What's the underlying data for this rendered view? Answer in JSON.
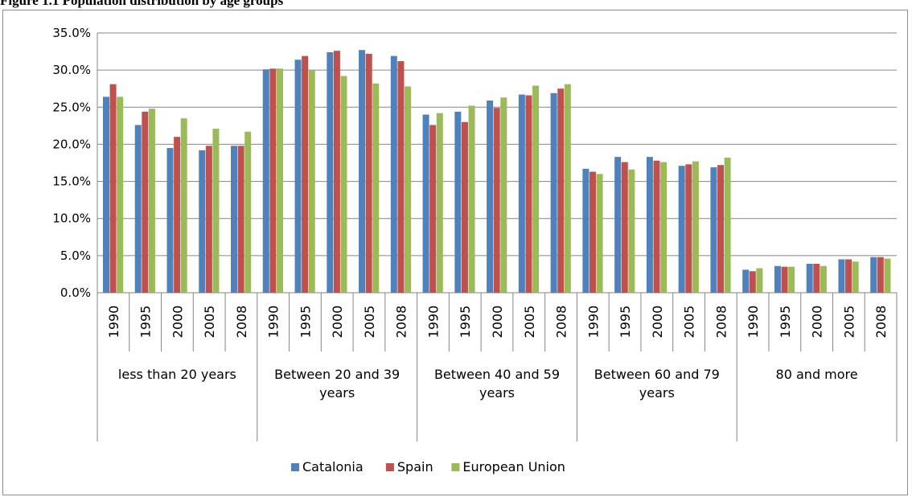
{
  "caption": "Figure 1.1 Population distribution by age groups",
  "colors": {
    "Catalonia": "#4f81bd",
    "Spain": "#c0504d",
    "European Union": "#9bbb59"
  },
  "chart_data": {
    "type": "bar",
    "title": "",
    "ylim": [
      0,
      35
    ],
    "y_ticks": [
      "0.0%",
      "5.0%",
      "10.0%",
      "15.0%",
      "20.0%",
      "25.0%",
      "30.0%",
      "35.0%"
    ],
    "grid": true,
    "legend_position": "bottom",
    "groups": [
      {
        "label": "less than 20 years",
        "years": [
          "1990",
          "1995",
          "2000",
          "2005",
          "2008"
        ]
      },
      {
        "label": "Between 20 and 39 years",
        "years": [
          "1990",
          "1995",
          "2000",
          "2005",
          "2008"
        ]
      },
      {
        "label": "Between 40 and 59 years",
        "years": [
          "1990",
          "1995",
          "2000",
          "2005",
          "2008"
        ]
      },
      {
        "label": "Between 60 and 79 years",
        "years": [
          "1990",
          "1995",
          "2000",
          "2005",
          "2008"
        ]
      },
      {
        "label": "80 and more",
        "years": [
          "1990",
          "1995",
          "2000",
          "2005",
          "2008"
        ]
      }
    ],
    "series": [
      {
        "name": "Catalonia",
        "values": [
          26.4,
          22.6,
          19.5,
          19.2,
          19.8,
          30.1,
          31.4,
          32.4,
          32.7,
          31.9,
          24.0,
          24.4,
          25.9,
          26.7,
          26.9,
          16.7,
          18.3,
          18.3,
          17.1,
          16.9,
          3.1,
          3.6,
          3.9,
          4.5,
          4.8
        ]
      },
      {
        "name": "Spain",
        "values": [
          28.1,
          24.4,
          21.0,
          19.8,
          19.8,
          30.2,
          31.9,
          32.6,
          32.2,
          31.2,
          22.6,
          23.0,
          24.9,
          26.6,
          27.5,
          16.3,
          17.6,
          17.8,
          17.3,
          17.2,
          2.9,
          3.5,
          3.9,
          4.5,
          4.8
        ]
      },
      {
        "name": "European Union",
        "values": [
          26.4,
          24.8,
          23.5,
          22.1,
          21.7,
          30.2,
          30.0,
          29.2,
          28.2,
          27.8,
          24.2,
          25.2,
          26.3,
          27.9,
          28.1,
          16.0,
          16.6,
          17.6,
          17.7,
          18.2,
          3.3,
          3.5,
          3.6,
          4.2,
          4.6
        ]
      }
    ]
  }
}
